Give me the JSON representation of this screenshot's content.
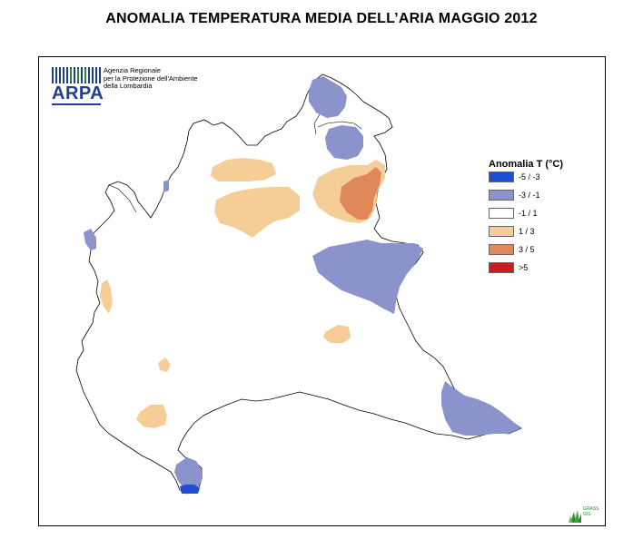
{
  "title": "ANOMALIA TEMPERATURA MEDIA DELL’ARIA MAGGIO 2012",
  "logo": {
    "lines": [
      "Agenzia Regionale",
      "per la Protezione dell'Ambiente",
      "della Lombardia"
    ],
    "wordmark": "ARPA",
    "color": "#1f3f8c"
  },
  "legend": {
    "title": "Anomalia T (°C)",
    "items": [
      {
        "label": "-5 / -3",
        "color": "#1f4fd0"
      },
      {
        "label": "-3 / -1",
        "color": "#8a93cc"
      },
      {
        "label": "-1 / 1",
        "color": "#ffffff"
      },
      {
        "label": "1 / 3",
        "color": "#f5cd96"
      },
      {
        "label": "3 / 5",
        "color": "#e0885a"
      },
      {
        "label": ">5",
        "color": "#c81e1e"
      }
    ]
  },
  "credit": {
    "lines": [
      "GRASS",
      "GIS"
    ],
    "icon": "grass-gis-logo-icon"
  }
}
